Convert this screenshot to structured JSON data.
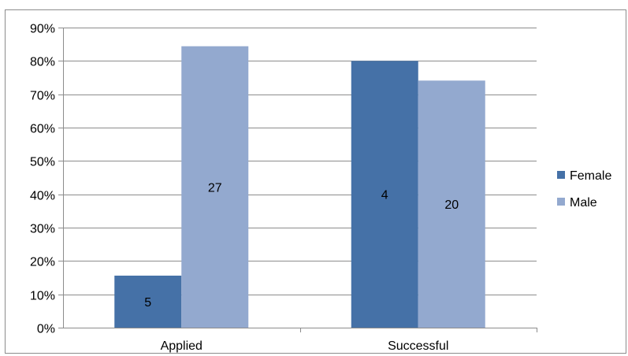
{
  "chart_data": {
    "type": "bar",
    "title": "",
    "xlabel": "",
    "ylabel": "",
    "categories": [
      "Applied",
      "Successful"
    ],
    "series": [
      {
        "name": "Female",
        "color": "#4571a7",
        "values": [
          0.156,
          0.8
        ],
        "labels": [
          "5",
          "4"
        ]
      },
      {
        "name": "Male",
        "color": "#93a9cf",
        "values": [
          0.844,
          0.741
        ],
        "labels": [
          "27",
          "20"
        ]
      }
    ],
    "ylim": [
      0,
      0.9
    ],
    "yticks": [
      "0%",
      "10%",
      "20%",
      "30%",
      "40%",
      "50%",
      "60%",
      "70%",
      "80%",
      "90%"
    ],
    "grid": true,
    "legend": "right"
  }
}
